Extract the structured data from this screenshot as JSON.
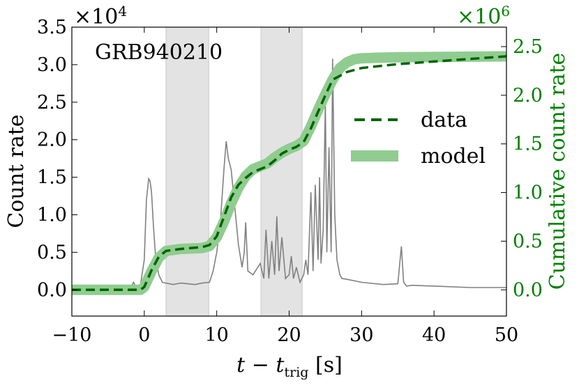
{
  "chart_data": {
    "type": "line",
    "annotation": "GRB940210",
    "xlabel": "t − t",
    "xlabel_sub": "trig",
    "xlabel_unit": " [s]",
    "ylabel_left": "Count rate",
    "ylabel_right": "Cumulative count rate",
    "left_multiplier": "×10",
    "left_multiplier_exp": "4",
    "right_multiplier": "×10",
    "right_multiplier_exp": "6",
    "xlim": [
      -10,
      50
    ],
    "ylim_left": [
      -3500,
      35000
    ],
    "ylim_right": [
      -270000,
      2700000
    ],
    "x_ticks": [
      -10,
      0,
      10,
      20,
      30,
      40,
      50
    ],
    "x_tick_labels": [
      "−10",
      "0",
      "10",
      "20",
      "30",
      "40",
      "50"
    ],
    "y_left_ticks": [
      0,
      5000,
      10000,
      15000,
      20000,
      25000,
      30000,
      35000
    ],
    "y_left_tick_labels": [
      "0.0",
      "0.5",
      "1.0",
      "1.5",
      "2.0",
      "2.5",
      "3.0",
      "3.5"
    ],
    "y_right_ticks": [
      0,
      500000,
      1000000,
      1500000,
      2000000,
      2500000
    ],
    "y_right_tick_labels": [
      "0.0",
      "0.5",
      "1.0",
      "1.5",
      "2.0",
      "2.5"
    ],
    "shaded_intervals": [
      [
        3,
        8.9
      ],
      [
        16.1,
        21.8
      ]
    ],
    "legend": {
      "placement": "right",
      "entries": [
        "data",
        "model"
      ]
    },
    "colors": {
      "count_rate": "#808080",
      "data": "#006400",
      "model": "#90cc90",
      "right_axis": "#008000",
      "shade": "#e3e3e3"
    },
    "series": [
      {
        "name": "Count rate",
        "axis": "left",
        "x": [
          -10,
          -2,
          -1.5,
          -1,
          -0.5,
          0,
          0.3,
          0.6,
          0.8,
          1,
          1.3,
          1.6,
          2,
          2.5,
          3,
          4,
          5,
          6,
          7,
          8,
          9,
          9.5,
          10,
          10.5,
          11,
          11.3,
          11.6,
          12,
          12.5,
          13,
          13.5,
          13.8,
          14,
          14.3,
          15,
          16,
          16.5,
          16.8,
          17.2,
          17.6,
          18,
          18.3,
          18.6,
          19,
          19.5,
          20,
          20.3,
          20.6,
          21,
          21.5,
          22,
          22.3,
          22.6,
          23,
          23.3,
          23.6,
          24,
          24.2,
          24.4,
          24.7,
          25,
          25.2,
          25.5,
          25.8,
          26,
          26.3,
          26.6,
          26.8,
          27,
          27.3,
          28,
          30,
          33,
          35,
          35.5,
          35.8,
          36.2,
          37,
          40,
          45,
          50
        ],
        "y": [
          0,
          0,
          1000,
          200,
          800,
          4000,
          12000,
          14800,
          14500,
          13000,
          8000,
          4000,
          2000,
          1000,
          900,
          700,
          900,
          800,
          700,
          900,
          1000,
          2500,
          5000,
          9000,
          16000,
          19800,
          17500,
          16000,
          11000,
          6000,
          3000,
          5000,
          9000,
          2500,
          2000,
          3500,
          1500,
          8000,
          1500,
          6500,
          2000,
          9800,
          2500,
          7000,
          1500,
          2000,
          4500,
          1500,
          3000,
          1000,
          2000,
          4000,
          2000,
          13000,
          2500,
          14000,
          4000,
          15000,
          3500,
          8000,
          25000,
          5000,
          19000,
          5000,
          30800,
          10000,
          4000,
          3000,
          2000,
          1500,
          1400,
          1000,
          700,
          800,
          5800,
          1000,
          500,
          600,
          500,
          300,
          300
        ]
      },
      {
        "name": "data",
        "axis": "right",
        "x": [
          -10,
          -0.5,
          0,
          1,
          2,
          3,
          5,
          8,
          9,
          10,
          11,
          12,
          13,
          14,
          15,
          16,
          17,
          18,
          19,
          20,
          21,
          22,
          23,
          24,
          25,
          26,
          27,
          28,
          30,
          35,
          50
        ],
        "y": [
          0,
          0,
          30000,
          200000,
          340000,
          400000,
          420000,
          440000,
          460000,
          550000,
          750000,
          950000,
          1080000,
          1150000,
          1210000,
          1240000,
          1270000,
          1330000,
          1400000,
          1440000,
          1470000,
          1520000,
          1660000,
          1830000,
          2000000,
          2160000,
          2200000,
          2240000,
          2280000,
          2320000,
          2400000
        ]
      },
      {
        "name": "model",
        "axis": "right",
        "x": [
          -10,
          -0.5,
          0,
          1,
          2,
          3,
          5,
          8,
          9,
          10,
          11,
          12,
          13,
          14,
          15,
          16,
          17,
          18,
          19,
          20,
          21,
          22,
          23,
          24,
          25,
          26,
          27,
          28,
          29,
          30,
          32,
          35,
          50
        ],
        "y": [
          0,
          0,
          30000,
          190000,
          330000,
          400000,
          420000,
          430000,
          450000,
          540000,
          700000,
          890000,
          1050000,
          1170000,
          1240000,
          1270000,
          1300000,
          1360000,
          1410000,
          1450000,
          1480000,
          1530000,
          1680000,
          1850000,
          2010000,
          2160000,
          2280000,
          2340000,
          2370000,
          2380000,
          2385000,
          2390000,
          2400000
        ]
      }
    ]
  }
}
